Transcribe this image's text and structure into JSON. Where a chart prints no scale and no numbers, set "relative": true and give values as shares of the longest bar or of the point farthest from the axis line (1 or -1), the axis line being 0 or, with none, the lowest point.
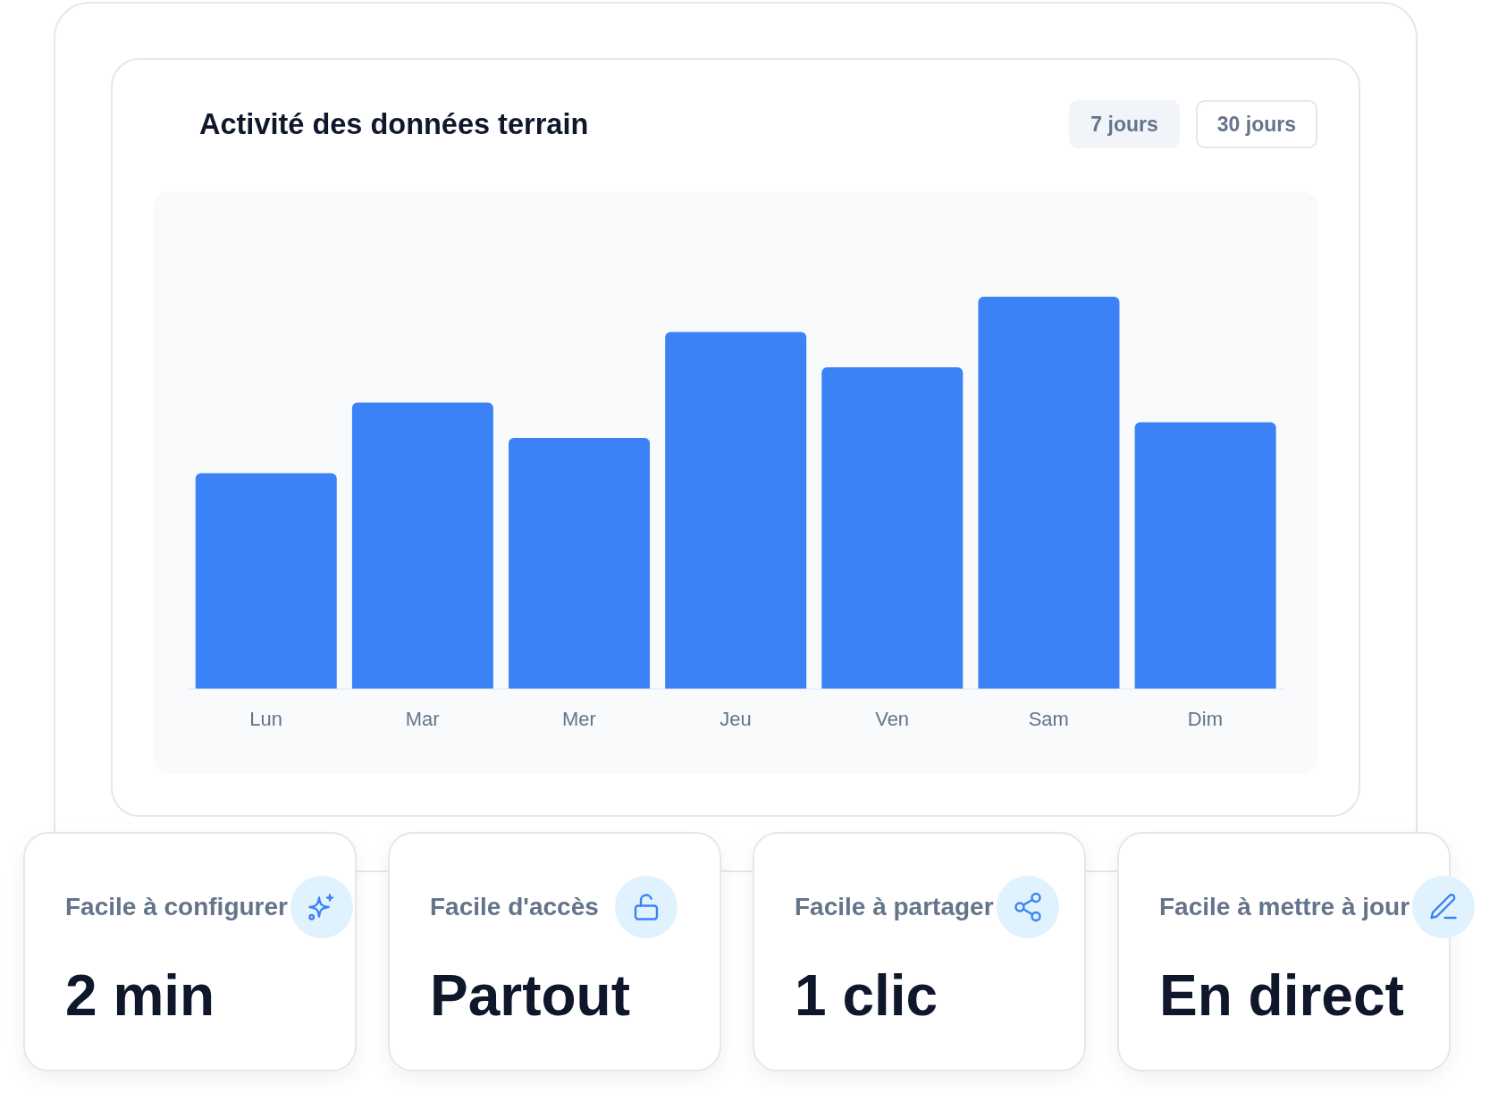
{
  "chart_data": [
    {
      "type": "bar",
      "title": "Activité des données terrain",
      "annotations": [
        "7 jours",
        "30 jours"
      ],
      "categories": [
        "Lun",
        "Mar",
        "Mer",
        "Jeu",
        "Ven",
        "Sam",
        "Dim"
      ],
      "values": [
        0.55,
        0.73,
        0.64,
        0.91,
        0.82,
        1,
        0.68
      ],
      "color": "#3b82f6",
      "relative": true,
      "tick_labels": "x"
    },
    {
      "type": "other",
      "title": "Facile à configurer",
      "annotations": [
        "2 min"
      ]
    },
    {
      "type": "other",
      "title": "Facile d'accès",
      "annotations": [
        "Partout"
      ]
    },
    {
      "type": "other",
      "title": "Facile à partager",
      "annotations": [
        "1 clic"
      ]
    },
    {
      "type": "other",
      "title": "Facile à mettre à jour",
      "annotations": [
        "En direct"
      ]
    }
  ]
}
